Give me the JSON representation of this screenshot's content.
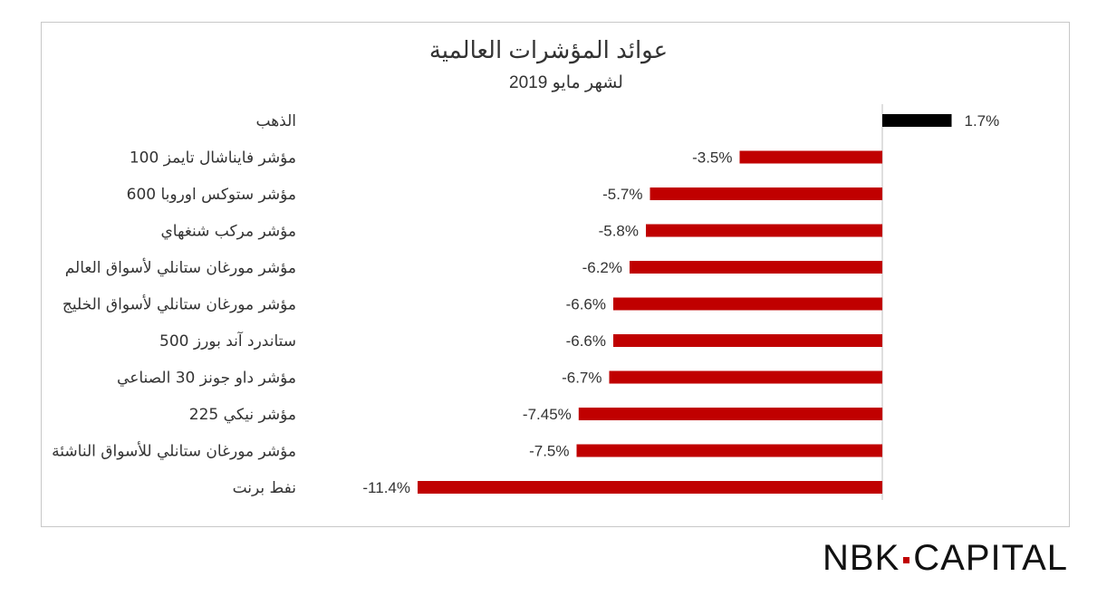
{
  "chart_data": {
    "type": "bar",
    "orientation": "horizontal",
    "title": "عوائد المؤشرات العالمية",
    "subtitle": "لشهر مايو 2019",
    "categories": [
      "الذهب",
      "مؤشر فايناشال تايمز 100",
      "مؤشر ستوكس اوروبا 600",
      "مؤشر مركب شنغهاي",
      "مؤشر مورغان ستانلي لأسواق العالم",
      "مؤشر مورغان ستانلي لأسواق الخليج",
      "ستاندرد آند بورز 500",
      "مؤشر داو جونز 30 الصناعي",
      "مؤشر نيكي 225",
      "مؤشر مورغان ستانلي للأسواق الناشئة",
      "نفط برنت"
    ],
    "values": [
      1.7,
      -3.5,
      -5.7,
      -5.8,
      -6.2,
      -6.6,
      -6.6,
      -6.7,
      -7.45,
      -7.5,
      -11.4
    ],
    "value_labels": [
      "1.7%",
      "-3.5%",
      "-5.7%",
      "-5.8%",
      "-6.2%",
      "-6.6%",
      "-6.6%",
      "-6.7%",
      "-7.45%",
      "-7.5%",
      "-11.4%"
    ],
    "colors": {
      "positive": "#000000",
      "negative": "#c00000",
      "axis": "#bfbfbf",
      "text": "#333333"
    },
    "xlim": [
      -11.4,
      1.7
    ],
    "grid": false,
    "legend": "none"
  },
  "logo": {
    "left": "NBK",
    "right": "CAPITAL",
    "dot_color": "#c00000"
  }
}
